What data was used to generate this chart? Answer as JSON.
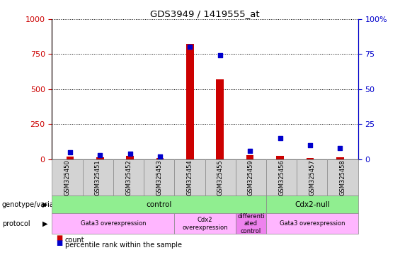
{
  "title": "GDS3949 / 1419555_at",
  "samples": [
    "GSM325450",
    "GSM325451",
    "GSM325452",
    "GSM325453",
    "GSM325454",
    "GSM325455",
    "GSM325459",
    "GSM325456",
    "GSM325457",
    "GSM325458"
  ],
  "counts": [
    18,
    12,
    25,
    10,
    820,
    570,
    30,
    22,
    8,
    15
  ],
  "percentile_ranks": [
    5,
    3,
    4,
    2,
    80,
    74,
    6,
    15,
    10,
    8
  ],
  "ylim_left": [
    0,
    1000
  ],
  "ylim_right": [
    0,
    100
  ],
  "yticks_left": [
    0,
    250,
    500,
    750,
    1000
  ],
  "yticks_right": [
    0,
    25,
    50,
    75,
    100
  ],
  "ytick_right_labels": [
    "0",
    "25",
    "50",
    "75",
    "100%"
  ],
  "bar_color": "#cc0000",
  "dot_color": "#0000cc",
  "left_axis_color": "#cc0000",
  "right_axis_color": "#0000cc",
  "bg_color": "#ffffff",
  "grid_color": "#000000",
  "legend_count_color": "#cc0000",
  "legend_pct_color": "#0000cc",
  "sample_box_color": "#d3d3d3",
  "genotype_groups": [
    {
      "label": "control",
      "start": 0,
      "end": 7,
      "color": "#90ee90"
    },
    {
      "label": "Cdx2-null",
      "start": 7,
      "end": 10,
      "color": "#90ee90"
    }
  ],
  "protocol_groups": [
    {
      "label": "Gata3 overexpression",
      "start": 0,
      "end": 4,
      "color": "#ffb6ff"
    },
    {
      "label": "Cdx2\noverexpression",
      "start": 4,
      "end": 6,
      "color": "#ffb6ff"
    },
    {
      "label": "differenti\nated\ncontrol",
      "start": 6,
      "end": 7,
      "color": "#ee82ee"
    },
    {
      "label": "Gata3 overexpression",
      "start": 7,
      "end": 10,
      "color": "#ffb6ff"
    }
  ]
}
